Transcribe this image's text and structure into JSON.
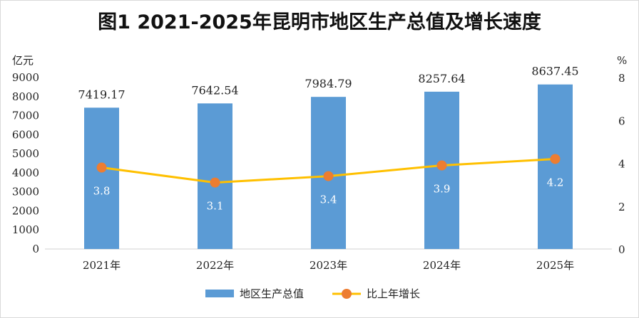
{
  "chart_data": {
    "type": "bar",
    "title": "图1  2021-2025年昆明市地区生产总值及增长速度",
    "categories": [
      "2021年",
      "2022年",
      "2023年",
      "2024年",
      "2025年"
    ],
    "series": [
      {
        "name": "地区生产总值",
        "type": "bar",
        "axis": "left",
        "values": [
          7419.17,
          7642.54,
          7984.79,
          8257.64,
          8637.45
        ],
        "value_labels": [
          "7419.17",
          "7642.54",
          "7984.79",
          "8257.64",
          "8637.45"
        ],
        "color": "#5B9BD5"
      },
      {
        "name": "比上年增长",
        "type": "line",
        "axis": "right",
        "values": [
          3.8,
          3.1,
          3.4,
          3.9,
          4.2
        ],
        "value_labels": [
          "3.8",
          "3.1",
          "3.4",
          "3.9",
          "4.2"
        ],
        "line_color": "#FFC000",
        "marker_color": "#ED7D31"
      }
    ],
    "y_left": {
      "unit": "亿元",
      "ylim": [
        0,
        9000
      ],
      "ticks": [
        0,
        1000,
        2000,
        3000,
        4000,
        5000,
        6000,
        7000,
        8000,
        9000
      ],
      "tick_labels": [
        "0",
        "1000",
        "2000",
        "3000",
        "4000",
        "5000",
        "6000",
        "7000",
        "8000",
        "9000"
      ]
    },
    "y_right": {
      "unit": "%",
      "ylim": [
        0,
        8
      ],
      "ticks": [
        0,
        2,
        4,
        6,
        8
      ],
      "tick_labels": [
        "0",
        "2",
        "4",
        "6",
        "8"
      ]
    },
    "grid": false,
    "legend_position": "bottom"
  }
}
